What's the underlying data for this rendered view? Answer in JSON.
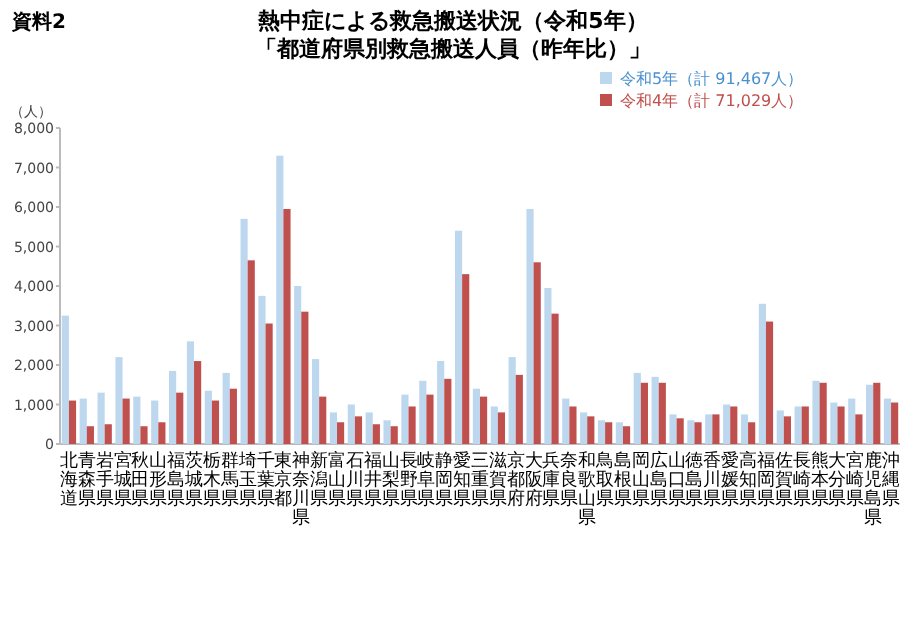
{
  "chart_data": {
    "type": "bar",
    "title": "熱中症による救急搬送状況（令和5年）",
    "subtitle": "「都道府県別救急搬送人員（昨年比）」",
    "ylabel": "（人）",
    "annotations": [
      "資料2"
    ],
    "categories": [
      "北海道",
      "青森県",
      "岩手県",
      "宮城県",
      "秋田県",
      "山形県",
      "福島県",
      "茨城県",
      "栃木県",
      "群馬県",
      "埼玉県",
      "千葉県",
      "東京都",
      "神奈川県",
      "新潟県",
      "富山県",
      "石川県",
      "福井県",
      "山梨県",
      "長野県",
      "岐阜県",
      "静岡県",
      "愛知県",
      "三重県",
      "滋賀県",
      "京都府",
      "大阪府",
      "兵庫県",
      "奈良県",
      "和歌山県",
      "鳥取県",
      "島根県",
      "岡山県",
      "広島県",
      "山口県",
      "徳島県",
      "香川県",
      "愛媛県",
      "高知県",
      "福岡県",
      "佐賀県",
      "長崎県",
      "熊本県",
      "大分県",
      "宮崎県",
      "鹿児島県",
      "沖縄県"
    ],
    "series": [
      {
        "name": "令和5年（計 91,467人）",
        "color": "#bdd7ee",
        "values": [
          3250,
          1150,
          1300,
          2200,
          1200,
          1100,
          1850,
          2600,
          1350,
          1800,
          5700,
          3750,
          7300,
          4000,
          2150,
          800,
          1000,
          800,
          600,
          1250,
          1600,
          2100,
          5400,
          1400,
          950,
          2200,
          5950,
          3950,
          1150,
          800,
          600,
          550,
          1800,
          1700,
          750,
          600,
          750,
          1000,
          750,
          3550,
          850,
          950,
          1600,
          1050,
          1150,
          1500,
          1150
        ]
      },
      {
        "name": "令和4年（計 71,029人）",
        "color": "#c0504d",
        "values": [
          1100,
          450,
          500,
          1150,
          450,
          550,
          1300,
          2100,
          1100,
          1400,
          4650,
          3050,
          5950,
          3350,
          1200,
          550,
          700,
          500,
          450,
          950,
          1250,
          1650,
          4300,
          1200,
          800,
          1750,
          4600,
          3300,
          950,
          700,
          550,
          450,
          1550,
          1550,
          650,
          550,
          750,
          950,
          550,
          3100,
          700,
          950,
          1550,
          950,
          750,
          1550,
          1050
        ]
      }
    ],
    "ylim": [
      0,
      8000
    ],
    "yticks": [
      0,
      {
        "value": 1000,
        "label": "1,000"
      },
      {
        "value": 2000,
        "label": "2,000"
      },
      {
        "value": 3000,
        "label": "3,000"
      },
      {
        "value": 4000,
        "label": "4,000"
      },
      {
        "value": 5000,
        "label": "5,000"
      },
      {
        "value": 6000,
        "label": "6,000"
      },
      {
        "value": 7000,
        "label": "7,000"
      },
      {
        "value": 8000,
        "label": "8,000"
      }
    ],
    "legend": "top right"
  }
}
